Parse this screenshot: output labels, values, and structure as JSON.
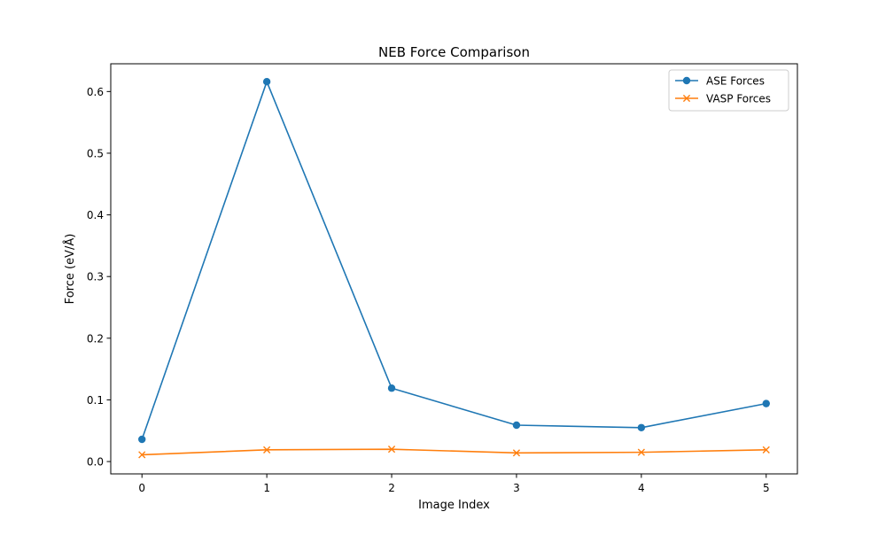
{
  "chart_data": {
    "type": "line",
    "title": "NEB Force Comparison",
    "xlabel": "Image Index",
    "ylabel": "Force (eV/Å)",
    "x": [
      0,
      1,
      2,
      3,
      4,
      5
    ],
    "xticks": [
      "0",
      "1",
      "2",
      "3",
      "4",
      "5"
    ],
    "yticks": [
      "0.0",
      "0.1",
      "0.2",
      "0.3",
      "0.4",
      "0.5",
      "0.6"
    ],
    "xlim": [
      -0.25,
      5.25
    ],
    "ylim": [
      -0.02,
      0.645
    ],
    "grid": false,
    "legend_position": "top-right",
    "series": [
      {
        "name": "ASE Forces",
        "values": [
          0.036,
          0.616,
          0.119,
          0.059,
          0.055,
          0.094
        ],
        "color": "#1f77b4",
        "marker": "circle"
      },
      {
        "name": "VASP Forces",
        "values": [
          0.011,
          0.019,
          0.02,
          0.014,
          0.015,
          0.019
        ],
        "color": "#ff7f0e",
        "marker": "x"
      }
    ]
  }
}
